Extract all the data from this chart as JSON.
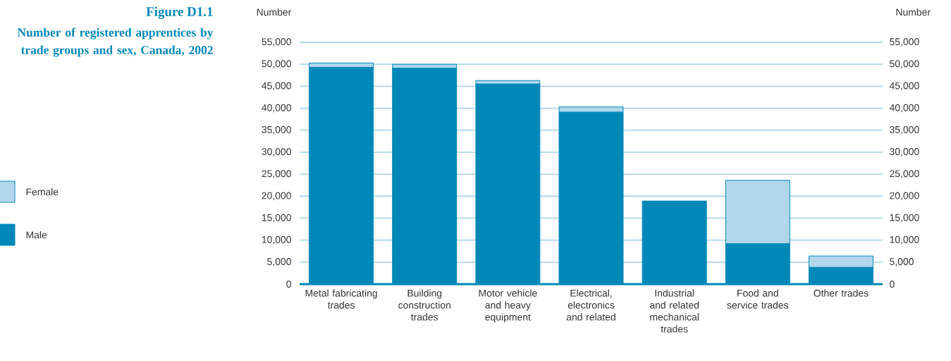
{
  "chart_data": {
    "type": "bar",
    "subtitle": "Figure D1.1",
    "title": "Number of registered apprentices by trade groups and sex, Canada, 2002",
    "categories": [
      "Metal fabricating trades",
      "Building construction trades",
      "Motor vehicle and heavy equipment",
      "Electrical, electronics and related",
      "Industrial and related mechanical trades",
      "Food and service trades",
      "Other trades"
    ],
    "series": [
      {
        "name": "Male",
        "color": "#0088b9",
        "values": [
          49300,
          49100,
          45500,
          39100,
          18900,
          9200,
          3800
        ]
      },
      {
        "name": "Female",
        "color": "#b0d8ea",
        "values": [
          1000,
          900,
          800,
          1200,
          0,
          14400,
          2600
        ]
      }
    ],
    "stacked": true,
    "ylabel": "Number",
    "y2label": "Number",
    "ylim": [
      0,
      55000
    ],
    "yticks": [
      {
        "value": 0,
        "label": "0"
      },
      {
        "value": 5000,
        "label": "5,000"
      },
      {
        "value": 10000,
        "label": "10,000"
      },
      {
        "value": 15000,
        "label": "15,000"
      },
      {
        "value": 20000,
        "label": "20,000"
      },
      {
        "value": 25000,
        "label": "25,000"
      },
      {
        "value": 30000,
        "label": "30,000"
      },
      {
        "value": 35000,
        "label": "35,000"
      },
      {
        "value": 40000,
        "label": "40,000"
      },
      {
        "value": 45000,
        "label": "45,000"
      },
      {
        "value": 50000,
        "label": "50,000"
      },
      {
        "value": 55000,
        "label": "55,000"
      }
    ],
    "y2lim": [
      0,
      55000
    ],
    "y2ticks": [
      {
        "value": 0,
        "label": "0"
      },
      {
        "value": 5000,
        "label": "5,000"
      },
      {
        "value": 10000,
        "label": "10,000"
      },
      {
        "value": 15000,
        "label": "15,000"
      },
      {
        "value": 20000,
        "label": "20,000"
      },
      {
        "value": 25000,
        "label": "25,000"
      },
      {
        "value": 30000,
        "label": "30,000"
      },
      {
        "value": 35000,
        "label": "35,000"
      },
      {
        "value": 40000,
        "label": "40,000"
      },
      {
        "value": 45000,
        "label": "45,000"
      },
      {
        "value": 50000,
        "label": "50,000"
      },
      {
        "value": 55000,
        "label": "55,000"
      }
    ],
    "grid": "y",
    "legend": "left"
  }
}
